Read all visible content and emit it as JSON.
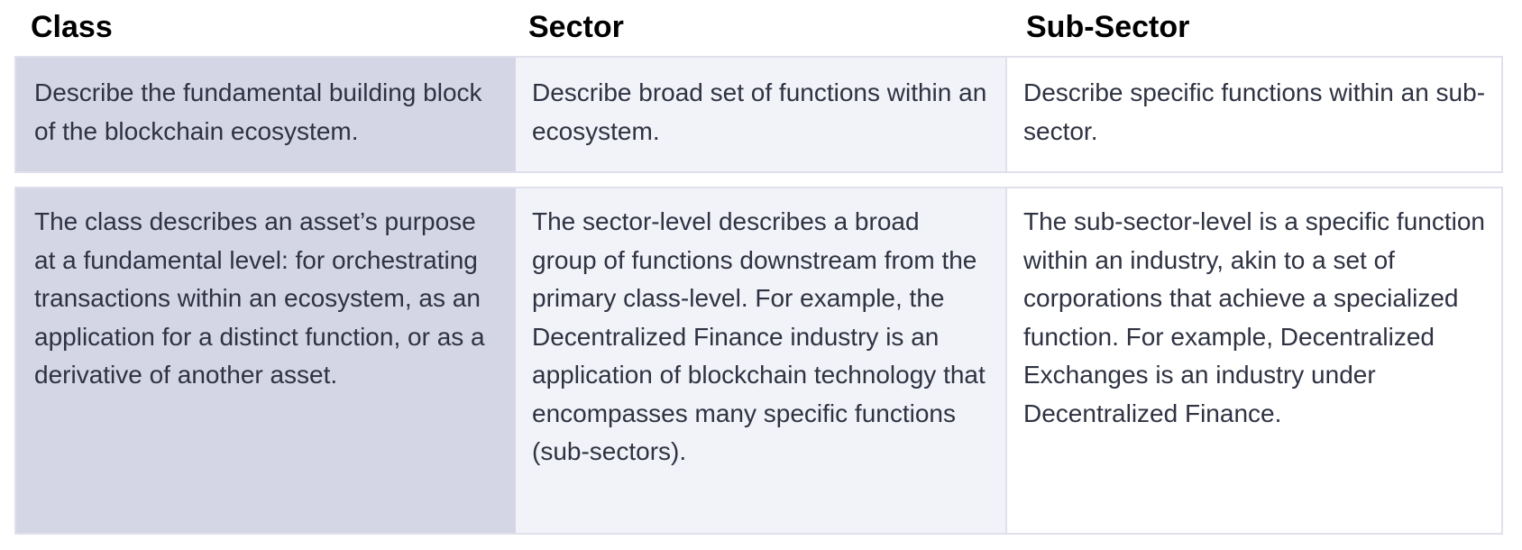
{
  "headers": {
    "class": "Class",
    "sector": "Sector",
    "sub_sector": "Sub-Sector"
  },
  "rows": [
    {
      "class": "Describe the fundamental building block of the blockchain ecosystem.",
      "sector": "Describe broad set of functions within an ecosystem.",
      "sub_sector": "Describe specific functions within an sub-sector."
    },
    {
      "class": "The class describes an asset’s purpose at a fundamental level: for orchestrating transactions within an ecosystem, as an application for a distinct function, or as a derivative of another asset.",
      "sector": "The sector-level describes a broad group of functions downstream from the primary class-level.  For example, the Decentralized Finance industry is an application of blockchain technology that encompasses many specific functions (sub-sectors).",
      "sub_sector": "The sub-sector-level is a specific function within an industry, akin to a set of corporations that achieve a specialized function.  For example, Decentralized Exchanges is an industry under Decentralized Finance."
    }
  ],
  "colors": {
    "class_column_bg": "#d4d6e5",
    "sector_column_bg": "#f2f3f8",
    "sub_sector_column_bg": "#ffffff",
    "border": "#dfe0ec",
    "header_text": "#000000",
    "body_text": "#2f3242"
  }
}
